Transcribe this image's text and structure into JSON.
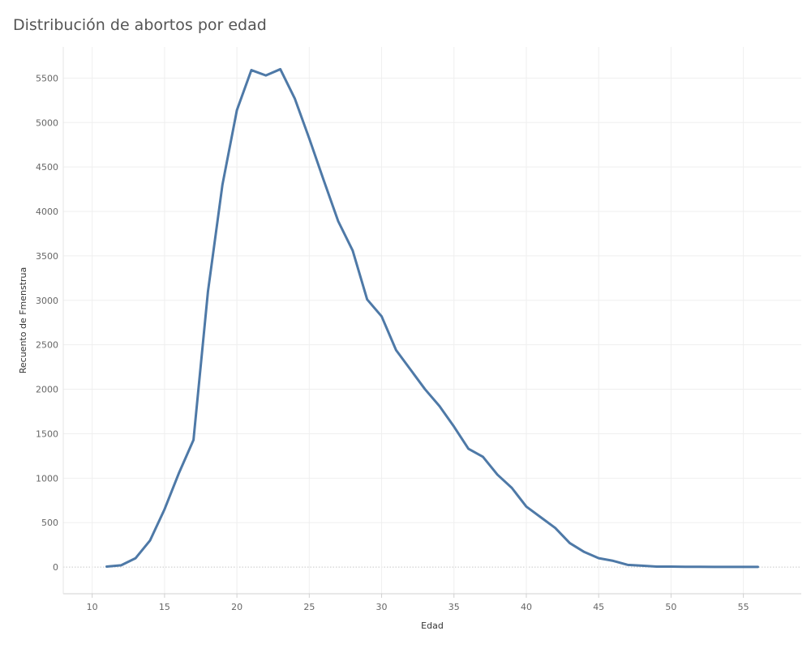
{
  "chart_data": {
    "type": "line",
    "title": "Distribución de abortos por edad",
    "xlabel": "Edad",
    "ylabel": "Recuento de Fmenstrua",
    "xlim": [
      8,
      59
    ],
    "ylim": [
      -300,
      5850
    ],
    "xticks": [
      10,
      15,
      20,
      25,
      30,
      35,
      40,
      45,
      50,
      55
    ],
    "yticks": [
      0,
      500,
      1000,
      1500,
      2000,
      2500,
      3000,
      3500,
      4000,
      4500,
      5000,
      5500
    ],
    "grid": true,
    "line_color": "#4e79a7",
    "x": [
      11,
      12,
      13,
      14,
      15,
      16,
      17,
      18,
      19,
      20,
      21,
      22,
      23,
      24,
      25,
      26,
      27,
      28,
      29,
      30,
      31,
      32,
      33,
      34,
      35,
      36,
      37,
      38,
      39,
      40,
      41,
      42,
      43,
      44,
      45,
      46,
      47,
      48,
      49,
      50,
      51,
      52,
      53,
      54,
      55,
      56
    ],
    "series": [
      {
        "values": [
          5,
          20,
          100,
          300,
          650,
          1060,
          1430,
          3100,
          4300,
          5140,
          5590,
          5530,
          5600,
          5270,
          4820,
          4350,
          3890,
          3560,
          3010,
          2820,
          2440,
          2220,
          2000,
          1810,
          1580,
          1330,
          1240,
          1040,
          890,
          680,
          560,
          440,
          270,
          170,
          100,
          70,
          25,
          15,
          5,
          5,
          3,
          3,
          2,
          2,
          2,
          2
        ]
      }
    ]
  }
}
